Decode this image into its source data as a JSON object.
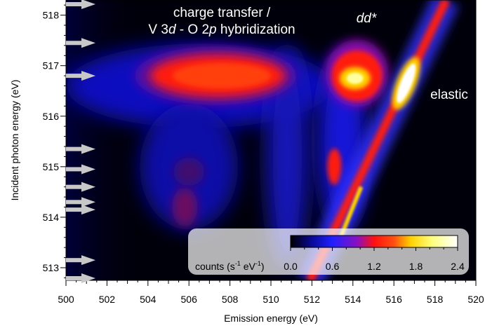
{
  "chart_data": {
    "type": "heatmap",
    "title": "",
    "xlabel": "Emission energy (eV)",
    "ylabel": "Incident photon energy (eV)",
    "xlim": [
      500,
      520
    ],
    "ylim": [
      512.75,
      518.3
    ],
    "x_ticks": [
      500,
      502,
      504,
      506,
      508,
      510,
      512,
      514,
      516,
      518,
      520
    ],
    "y_ticks": [
      513,
      514,
      515,
      516,
      517,
      518
    ],
    "colorbar": {
      "label": "counts (s⁻¹ eV⁻¹)",
      "range": [
        0,
        2.4
      ],
      "ticks": [
        "0.0",
        "0.6",
        "1.2",
        "1.8",
        "2.4"
      ],
      "colors": [
        "#000000",
        "#1a1aff",
        "#ff1a1a",
        "#ffd200",
        "#ffffff"
      ]
    },
    "annotations": {
      "charge_transfer_line1": "charge transfer /",
      "charge_transfer_line2": "V 3d - O 2p hybridization",
      "dd": "dd*",
      "elastic": "elastic"
    },
    "arrow_marks_incident_energy": [
      518.25,
      517.45,
      516.8,
      515.35,
      514.95,
      514.6,
      514.3,
      514.15,
      513.15,
      512.75
    ],
    "features": [
      {
        "name": "charge-transfer",
        "x": 507.3,
        "y": 516.8,
        "level": 1.3
      },
      {
        "name": "dd*",
        "x": 514.2,
        "y": 516.8,
        "level": 2.0
      },
      {
        "name": "elastic",
        "x": 516.7,
        "y": 516.6,
        "level": 2.4
      }
    ]
  }
}
